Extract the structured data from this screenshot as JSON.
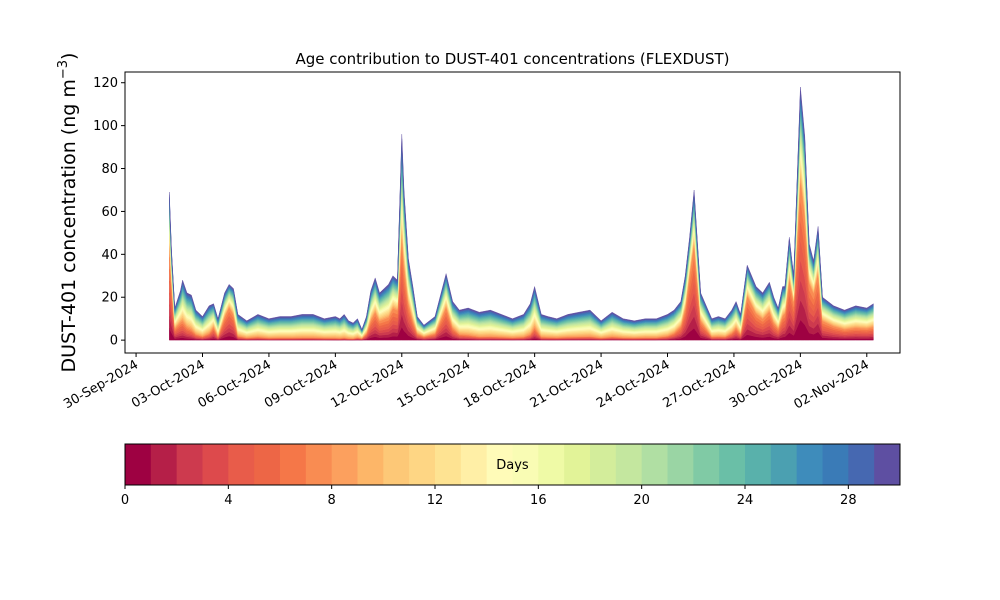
{
  "chart_data": {
    "type": "area",
    "stacked": true,
    "title": "Age contribution to DUST-401 concentrations (FLEXDUST)",
    "ylabel": "DUST-401 concentration (ng m",
    "ylabel_unit_sup": "−3",
    "ylabel_close": ")",
    "xlabel": "",
    "ylim": [
      -6,
      125
    ],
    "xlim_days": [
      -0.5,
      34.5
    ],
    "x_ticks": [
      "30-Sep-2024",
      "03-Oct-2024",
      "06-Oct-2024",
      "09-Oct-2024",
      "12-Oct-2024",
      "15-Oct-2024",
      "18-Oct-2024",
      "21-Oct-2024",
      "24-Oct-2024",
      "27-Oct-2024",
      "30-Oct-2024",
      "02-Nov-2024"
    ],
    "x_tick_days": [
      0,
      3,
      6,
      9,
      12,
      15,
      18,
      21,
      24,
      27,
      30,
      33
    ],
    "y_ticks": [
      0,
      20,
      40,
      60,
      80,
      100,
      120
    ],
    "grid": false,
    "series_count": 30,
    "x_days": [
      1.5,
      1.6,
      1.75,
      2.0,
      2.1,
      2.3,
      2.5,
      2.7,
      3.0,
      3.3,
      3.5,
      3.7,
      4.0,
      4.2,
      4.4,
      4.6,
      5.0,
      5.5,
      6.0,
      6.5,
      7.0,
      7.5,
      8.0,
      8.5,
      9.0,
      9.2,
      9.4,
      9.6,
      9.8,
      10.0,
      10.2,
      10.4,
      10.6,
      10.8,
      11.0,
      11.2,
      11.4,
      11.6,
      11.8,
      12.0,
      12.1,
      12.3,
      12.5,
      12.7,
      13.0,
      13.5,
      14.0,
      14.3,
      14.6,
      15.0,
      15.5,
      16.0,
      16.5,
      17.0,
      17.5,
      17.8,
      18.0,
      18.3,
      18.6,
      19.0,
      19.5,
      20.0,
      20.5,
      21.0,
      21.5,
      22.0,
      22.5,
      23.0,
      23.5,
      24.0,
      24.3,
      24.6,
      24.8,
      25.0,
      25.2,
      25.5,
      26.0,
      26.3,
      26.6,
      26.9,
      27.1,
      27.3,
      27.6,
      28.0,
      28.3,
      28.6,
      28.8,
      29.0,
      29.2,
      29.3,
      29.5,
      29.7,
      30.0,
      30.2,
      30.4,
      30.6,
      30.8,
      31.0,
      31.5,
      32.0,
      32.5,
      33.0,
      33.3
    ],
    "totals": [
      69,
      42,
      15,
      23,
      28,
      22,
      21,
      14,
      11,
      16,
      17,
      10,
      22,
      26,
      24,
      12,
      9,
      12,
      10,
      11,
      11,
      12,
      12,
      10,
      11,
      10,
      12,
      9,
      8,
      10,
      5,
      11,
      23,
      29,
      22,
      24,
      26,
      30,
      28,
      96,
      70,
      38,
      25,
      11,
      7,
      11,
      31,
      18,
      14,
      15,
      13,
      14,
      12,
      10,
      12,
      17,
      25,
      12,
      11,
      10,
      12,
      13,
      14,
      9,
      13,
      10,
      9,
      10,
      10,
      12,
      14,
      18,
      30,
      48,
      70,
      22,
      10,
      11,
      10,
      14,
      18,
      12,
      35,
      25,
      22,
      27,
      20,
      15,
      25,
      25,
      48,
      30,
      118,
      95,
      45,
      37,
      53,
      20,
      16,
      14,
      16,
      15,
      17
    ],
    "fresh_share": [
      0.75,
      0.75,
      0.45,
      0.45,
      0.4,
      0.35,
      0.3,
      0.25,
      0.2,
      0.25,
      0.45,
      0.2,
      0.6,
      0.7,
      0.6,
      0.2,
      0.15,
      0.15,
      0.12,
      0.12,
      0.12,
      0.12,
      0.12,
      0.12,
      0.1,
      0.1,
      0.1,
      0.1,
      0.1,
      0.15,
      0.2,
      0.35,
      0.5,
      0.55,
      0.5,
      0.5,
      0.5,
      0.6,
      0.6,
      0.62,
      0.6,
      0.55,
      0.45,
      0.35,
      0.3,
      0.35,
      0.6,
      0.4,
      0.25,
      0.2,
      0.15,
      0.15,
      0.15,
      0.15,
      0.15,
      0.2,
      0.3,
      0.15,
      0.15,
      0.15,
      0.15,
      0.15,
      0.15,
      0.15,
      0.15,
      0.15,
      0.15,
      0.15,
      0.15,
      0.2,
      0.3,
      0.45,
      0.6,
      0.75,
      0.75,
      0.5,
      0.2,
      0.2,
      0.2,
      0.3,
      0.4,
      0.3,
      0.7,
      0.6,
      0.55,
      0.6,
      0.5,
      0.45,
      0.55,
      0.6,
      0.7,
      0.7,
      0.75,
      0.72,
      0.7,
      0.7,
      0.7,
      0.55,
      0.5,
      0.45,
      0.45,
      0.45,
      0.45
    ],
    "colorbar": {
      "label": "Days",
      "ticks": [
        0,
        4,
        8,
        12,
        16,
        20,
        24,
        28
      ],
      "range": [
        0,
        30
      ],
      "colormap": "Spectral",
      "colors": [
        "#9e0142",
        "#b51f48",
        "#cd3a4e",
        "#dd4a4c",
        "#e85c4a",
        "#ed6646",
        "#f57748",
        "#f98c52",
        "#fca05e",
        "#fdb668",
        "#fdc877",
        "#fed684",
        "#fee392",
        "#ffefa6",
        "#fffbb8",
        "#f9fcb4",
        "#effaa6",
        "#e2f398",
        "#d3ed9b",
        "#c4e79f",
        "#b0dfa3",
        "#9ad5a4",
        "#80caa5",
        "#6abfa7",
        "#59b1ab",
        "#4ba0b1",
        "#3e8cbb",
        "#3a7bb7",
        "#4668b1",
        "#5e4fa2"
      ]
    }
  }
}
